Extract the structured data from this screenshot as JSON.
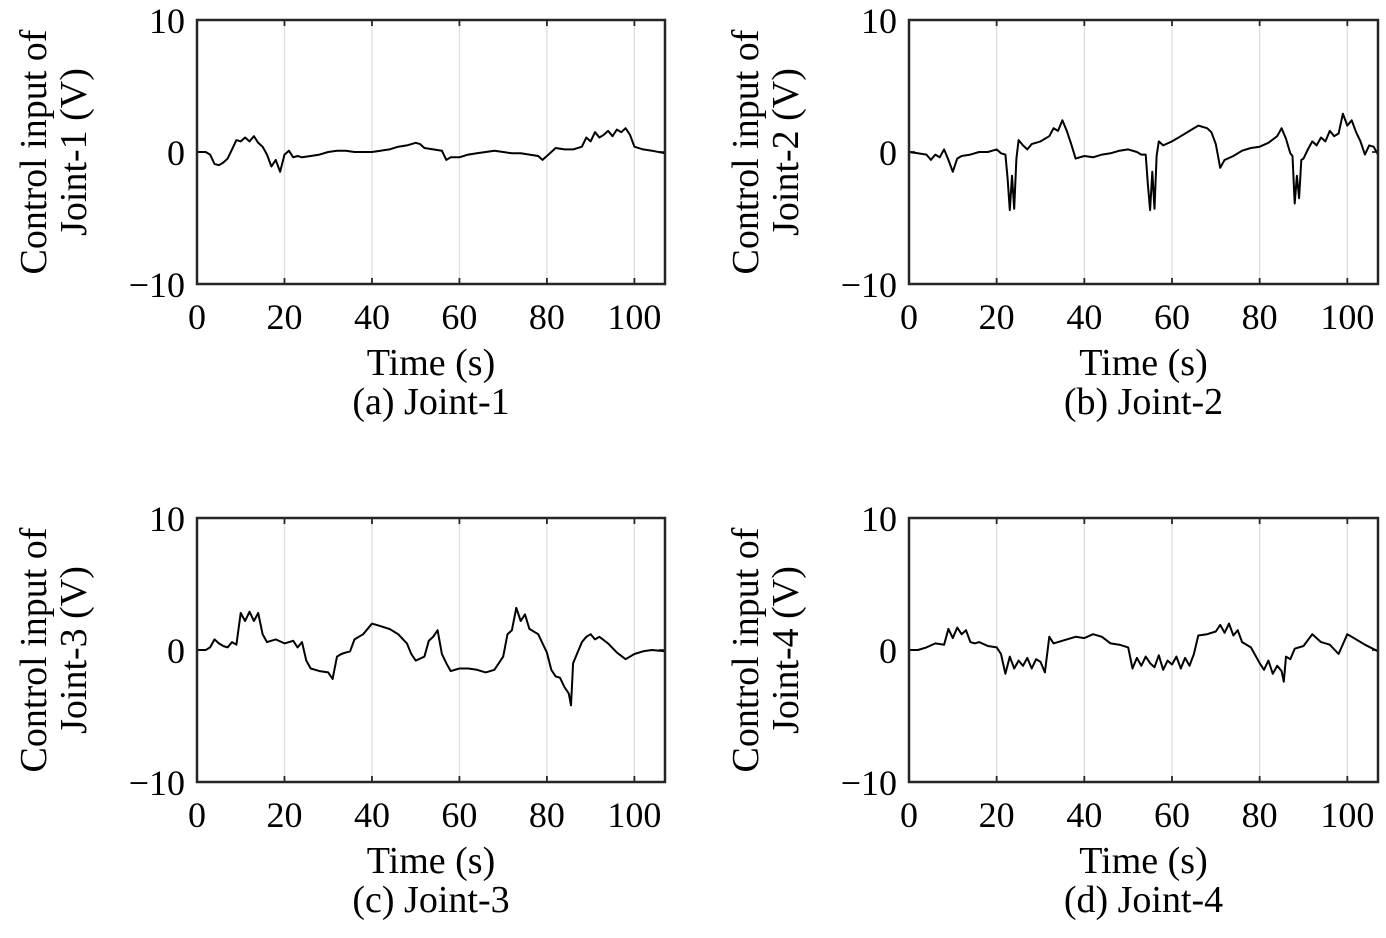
{
  "chart_data": [
    {
      "type": "line",
      "caption": "(a) Joint-1",
      "xlabel": "Time (s)",
      "ylabel": [
        "Control input of",
        "Joint-1 (V)"
      ],
      "xlim": [
        0,
        107
      ],
      "ylim": [
        -10,
        10
      ],
      "xticks": [
        0,
        20,
        40,
        60,
        80,
        100
      ],
      "xtick_labels": [
        "0",
        "20",
        "40",
        "60",
        "80",
        "100"
      ],
      "yticks": [
        -10,
        0,
        10
      ],
      "ytick_labels": [
        "−10",
        "0",
        "10"
      ],
      "grid": "x",
      "color": "#000000",
      "x": [
        0,
        2,
        3,
        4,
        5,
        6,
        7,
        8,
        9,
        10,
        11,
        12,
        13,
        14,
        15,
        16,
        17,
        18,
        19,
        20,
        21,
        22,
        23,
        24,
        26,
        28,
        30,
        32,
        34,
        36,
        38,
        40,
        42,
        44,
        46,
        48,
        50,
        51,
        52,
        54,
        56,
        57,
        58,
        60,
        62,
        64,
        66,
        68,
        70,
        72,
        74,
        76,
        78,
        79,
        80,
        81,
        82,
        84,
        86,
        88,
        89,
        90,
        91,
        92,
        93,
        94,
        95,
        96,
        97,
        98,
        99,
        100,
        102,
        104,
        107
      ],
      "y": [
        0,
        0,
        -0.2,
        -0.9,
        -1,
        -0.8,
        -0.5,
        0.2,
        0.9,
        0.8,
        1.1,
        0.8,
        1.2,
        0.7,
        0.4,
        -0.2,
        -1.1,
        -0.6,
        -1.5,
        -0.2,
        0.1,
        -0.4,
        -0.3,
        -0.4,
        -0.3,
        -0.2,
        0,
        0.1,
        0.1,
        0,
        0,
        0,
        0.1,
        0.2,
        0.4,
        0.5,
        0.7,
        0.6,
        0.3,
        0.2,
        0.1,
        -0.6,
        -0.4,
        -0.4,
        -0.2,
        -0.1,
        0,
        0.1,
        0,
        -0.1,
        -0.1,
        -0.2,
        -0.3,
        -0.6,
        -0.3,
        0,
        0.3,
        0.2,
        0.2,
        0.4,
        1.1,
        0.8,
        1.5,
        1.1,
        1.3,
        1.6,
        1.2,
        1.7,
        1.5,
        1.8,
        1.3,
        0.4,
        0.2,
        0.1,
        -0.1
      ]
    },
    {
      "type": "line",
      "caption": "(b) Joint-2",
      "xlabel": "Time (s)",
      "ylabel": [
        "Control input of",
        "Joint-2 (V)"
      ],
      "xlim": [
        0,
        107
      ],
      "ylim": [
        -10,
        10
      ],
      "xticks": [
        0,
        20,
        40,
        60,
        80,
        100
      ],
      "xtick_labels": [
        "0",
        "20",
        "40",
        "60",
        "80",
        "100"
      ],
      "yticks": [
        -10,
        0,
        10
      ],
      "ytick_labels": [
        "−10",
        "0",
        "10"
      ],
      "grid": "x",
      "color": "#000000",
      "x": [
        0,
        2,
        4,
        5,
        6,
        7,
        8,
        9,
        10,
        11,
        12,
        14,
        16,
        18,
        19,
        20,
        21,
        22,
        22.5,
        23,
        23.5,
        24,
        24.5,
        25,
        26,
        27,
        28,
        30,
        32,
        33,
        34,
        35,
        36,
        37,
        38,
        40,
        42,
        44,
        46,
        48,
        50,
        52,
        53,
        54,
        54.5,
        55,
        55.5,
        56,
        56.5,
        57,
        58,
        60,
        62,
        64,
        66,
        68,
        69,
        70,
        71,
        72,
        74,
        76,
        78,
        80,
        82,
        84,
        85,
        86,
        87,
        87.5,
        88,
        88.5,
        89,
        89.5,
        90,
        91,
        92,
        93,
        94,
        95,
        96,
        97,
        98,
        99,
        100,
        101,
        102,
        103,
        104,
        105,
        106,
        107
      ],
      "y": [
        0,
        -0.1,
        -0.2,
        -0.6,
        -0.2,
        -0.4,
        0.2,
        -0.6,
        -1.5,
        -0.5,
        -0.3,
        -0.2,
        0,
        0,
        0.1,
        0.2,
        -0.1,
        -0.2,
        -2,
        -4.4,
        -1.8,
        -4.3,
        -0.5,
        0.9,
        0.5,
        0.2,
        0.6,
        0.8,
        1.2,
        1.8,
        1.6,
        2.4,
        1.6,
        0.6,
        -0.5,
        -0.3,
        -0.4,
        -0.2,
        -0.1,
        0.1,
        0.2,
        0,
        -0.2,
        -0.2,
        -2.5,
        -4.4,
        -1.5,
        -4.3,
        -0.3,
        0.8,
        0.5,
        0.8,
        1.2,
        1.6,
        2,
        1.8,
        1.5,
        0.6,
        -1.2,
        -0.6,
        -0.3,
        0.1,
        0.3,
        0.4,
        0.7,
        1.2,
        1.8,
        1,
        -0.1,
        -0.3,
        -3.9,
        -1.8,
        -3.5,
        -0.6,
        -0.5,
        0.2,
        0.8,
        0.5,
        1.1,
        0.8,
        1.6,
        1.2,
        1.4,
        2.9,
        2,
        2.4,
        1.5,
        0.8,
        -0.2,
        0.5,
        0.4,
        -0.2
      ]
    },
    {
      "type": "line",
      "caption": "(c) Joint-3",
      "xlabel": "Time (s)",
      "ylabel": [
        "Control input of",
        "Joint-3 (V)"
      ],
      "xlim": [
        0,
        107
      ],
      "ylim": [
        -10,
        10
      ],
      "xticks": [
        0,
        20,
        40,
        60,
        80,
        100
      ],
      "xtick_labels": [
        "0",
        "20",
        "40",
        "60",
        "80",
        "100"
      ],
      "yticks": [
        -10,
        0,
        10
      ],
      "ytick_labels": [
        "−10",
        "0",
        "10"
      ],
      "grid": "x",
      "color": "#000000",
      "x": [
        0,
        2,
        3,
        4,
        5,
        6,
        7,
        8,
        9,
        10,
        11,
        12,
        13,
        14,
        15,
        16,
        18,
        20,
        22,
        23,
        24,
        25,
        26,
        28,
        30,
        31,
        32,
        33,
        34,
        35,
        36,
        38,
        40,
        42,
        44,
        46,
        48,
        49,
        50,
        52,
        53,
        54,
        55,
        56,
        57,
        58,
        60,
        62,
        64,
        66,
        68,
        70,
        71,
        72,
        73,
        74,
        75,
        76,
        78,
        80,
        81,
        82,
        83,
        84,
        85,
        85.5,
        86,
        87,
        88,
        89,
        90,
        91,
        92,
        94,
        96,
        98,
        100,
        102,
        104,
        107
      ],
      "y": [
        0,
        0,
        0.2,
        0.8,
        0.5,
        0.3,
        0.2,
        0.6,
        0.4,
        2.8,
        2.2,
        2.9,
        2.2,
        2.8,
        1.2,
        0.6,
        0.8,
        0.5,
        0.7,
        0.2,
        0.6,
        -0.8,
        -1.4,
        -1.6,
        -1.7,
        -2.2,
        -0.5,
        -0.3,
        -0.2,
        -0.1,
        0.8,
        1.2,
        2,
        1.8,
        1.6,
        1.2,
        0.5,
        -0.3,
        -0.8,
        -0.5,
        0.7,
        1,
        1.5,
        -0.3,
        -1,
        -1.6,
        -1.4,
        -1.4,
        -1.5,
        -1.7,
        -1.5,
        -0.5,
        1.2,
        1.5,
        3.2,
        2.2,
        2.7,
        1.6,
        1.2,
        -0.2,
        -1.5,
        -2,
        -2.1,
        -2.8,
        -3.3,
        -4.2,
        -1,
        -0.2,
        0.6,
        1,
        1.2,
        0.8,
        1,
        0.5,
        -0.2,
        -0.7,
        -0.3,
        -0.1,
        0,
        -0.1
      ]
    },
    {
      "type": "line",
      "caption": "(d) Joint-4",
      "xlabel": "Time (s)",
      "ylabel": [
        "Control input of",
        "Joint-4 (V)"
      ],
      "xlim": [
        0,
        107
      ],
      "ylim": [
        -10,
        10
      ],
      "xticks": [
        0,
        20,
        40,
        60,
        80,
        100
      ],
      "xtick_labels": [
        "0",
        "20",
        "40",
        "60",
        "80",
        "100"
      ],
      "yticks": [
        -10,
        0,
        10
      ],
      "ytick_labels": [
        "−10",
        "0",
        "10"
      ],
      "grid": "x",
      "color": "#000000",
      "x": [
        0,
        2,
        4,
        6,
        8,
        9,
        10,
        11,
        12,
        13,
        14,
        15,
        16,
        18,
        20,
        21,
        22,
        23,
        24,
        25,
        26,
        27,
        28,
        29,
        30,
        31,
        32,
        33,
        34,
        36,
        38,
        40,
        42,
        44,
        46,
        48,
        50,
        51,
        52,
        53,
        54,
        55,
        56,
        57,
        58,
        59,
        60,
        61,
        62,
        63,
        64,
        65,
        66,
        68,
        70,
        71,
        72,
        73,
        74,
        75,
        76,
        78,
        80,
        81,
        82,
        83,
        84,
        85,
        85.5,
        86,
        87,
        88,
        90,
        92,
        94,
        96,
        98,
        100,
        102,
        104,
        107
      ],
      "y": [
        0,
        0,
        0.2,
        0.5,
        0.4,
        1.6,
        0.9,
        1.7,
        1.2,
        1.5,
        0.6,
        0.5,
        0.6,
        0.3,
        0.2,
        -0.3,
        -1.8,
        -0.5,
        -1.4,
        -0.8,
        -1.2,
        -0.6,
        -1.4,
        -0.7,
        -0.9,
        -1.7,
        1,
        0.5,
        0.6,
        0.8,
        1,
        0.9,
        1.2,
        1,
        0.5,
        0.4,
        0.2,
        -1.4,
        -0.6,
        -1.2,
        -0.5,
        -1,
        -1.3,
        -0.4,
        -1.5,
        -0.8,
        -1.1,
        -0.5,
        -1.4,
        -0.6,
        -1.2,
        -0.3,
        1.1,
        1.2,
        1.4,
        1.9,
        1.3,
        2,
        1.1,
        1.5,
        0.6,
        0.2,
        -1,
        -1.5,
        -0.8,
        -1.8,
        -1.2,
        -1.6,
        -2.4,
        -0.5,
        -0.7,
        0.1,
        0.3,
        1.2,
        0.6,
        0.4,
        -0.3,
        1.2,
        0.8,
        0.4,
        -0.1
      ]
    }
  ]
}
